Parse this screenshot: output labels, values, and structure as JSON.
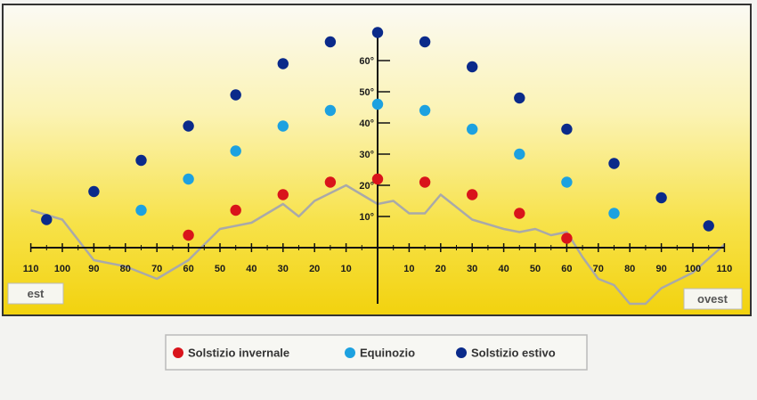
{
  "chart_data": {
    "type": "scatter",
    "title": "",
    "xlabel": "",
    "ylabel": "",
    "x_ticks": [
      "110",
      "100",
      "90",
      "80",
      "70",
      "60",
      "50",
      "40",
      "30",
      "20",
      "10",
      "10",
      "20",
      "30",
      "40",
      "50",
      "60",
      "70",
      "80",
      "90",
      "100",
      "110"
    ],
    "x_tick_values": [
      -110,
      -100,
      -90,
      -80,
      -70,
      -60,
      -50,
      -40,
      -30,
      -20,
      -10,
      10,
      20,
      30,
      40,
      50,
      60,
      70,
      80,
      90,
      100,
      110
    ],
    "y_ticks": [
      "10°",
      "20°",
      "30°",
      "40°",
      "50°",
      "60°"
    ],
    "y_tick_values": [
      10,
      20,
      30,
      40,
      50,
      60
    ],
    "xlim": [
      -110,
      110
    ],
    "ylim": [
      -18,
      70
    ],
    "left_label": "est",
    "right_label": "ovest",
    "series": [
      {
        "name": "Solstizio invernale",
        "color": "#d9141b",
        "points": [
          [
            -60,
            4
          ],
          [
            -45,
            12
          ],
          [
            -30,
            17
          ],
          [
            -15,
            21
          ],
          [
            0,
            22
          ],
          [
            15,
            21
          ],
          [
            30,
            17
          ],
          [
            45,
            11
          ],
          [
            60,
            3
          ]
        ]
      },
      {
        "name": "Equinozio",
        "color": "#1da1e0",
        "points": [
          [
            -75,
            12
          ],
          [
            -60,
            22
          ],
          [
            -45,
            31
          ],
          [
            -30,
            39
          ],
          [
            -15,
            44
          ],
          [
            0,
            46
          ],
          [
            15,
            44
          ],
          [
            30,
            38
          ],
          [
            45,
            30
          ],
          [
            60,
            21
          ],
          [
            75,
            11
          ]
        ]
      },
      {
        "name": "Solstizio estivo",
        "color": "#0a2a8a",
        "points": [
          [
            -105,
            9
          ],
          [
            -90,
            18
          ],
          [
            -75,
            28
          ],
          [
            -60,
            39
          ],
          [
            -45,
            49
          ],
          [
            -30,
            59
          ],
          [
            -15,
            66
          ],
          [
            0,
            69
          ],
          [
            15,
            66
          ],
          [
            30,
            58
          ],
          [
            45,
            48
          ],
          [
            60,
            38
          ],
          [
            75,
            27
          ],
          [
            90,
            16
          ],
          [
            105,
            7
          ]
        ]
      }
    ],
    "horizon": {
      "color": "#a9a9a9",
      "points": [
        [
          -110,
          12
        ],
        [
          -100,
          9
        ],
        [
          -90,
          -4
        ],
        [
          -80,
          -6
        ],
        [
          -70,
          -10
        ],
        [
          -60,
          -4
        ],
        [
          -50,
          6
        ],
        [
          -40,
          8
        ],
        [
          -30,
          14
        ],
        [
          -25,
          10
        ],
        [
          -20,
          15
        ],
        [
          -10,
          20
        ],
        [
          0,
          14
        ],
        [
          5,
          15
        ],
        [
          10,
          11
        ],
        [
          15,
          11
        ],
        [
          20,
          17
        ],
        [
          30,
          9
        ],
        [
          40,
          6
        ],
        [
          45,
          5
        ],
        [
          50,
          6
        ],
        [
          55,
          4
        ],
        [
          60,
          5
        ],
        [
          65,
          -3
        ],
        [
          70,
          -10
        ],
        [
          75,
          -12
        ],
        [
          80,
          -18
        ],
        [
          85,
          -18
        ],
        [
          90,
          -13
        ],
        [
          100,
          -8
        ],
        [
          110,
          1
        ]
      ]
    }
  }
}
